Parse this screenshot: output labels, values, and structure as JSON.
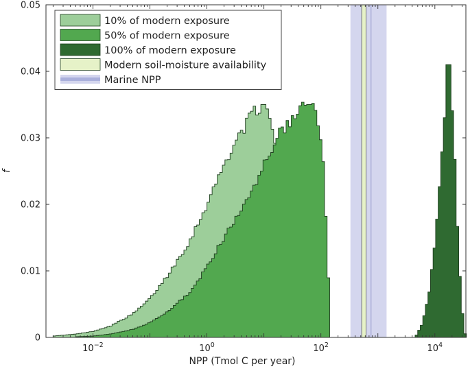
{
  "chart_data": {
    "type": "histogram",
    "x_scale": "log10",
    "xlim": [
      0.0015,
      35000
    ],
    "ylim": [
      0,
      0.05
    ],
    "xlabel": "NPP (Tmol C per year)",
    "ylabel": "f",
    "x_ticks": [
      {
        "value": 0.01,
        "base": "10",
        "exp": "−2"
      },
      {
        "value": 1,
        "base": "10",
        "exp": "0"
      },
      {
        "value": 100,
        "base": "10",
        "exp": "2"
      },
      {
        "value": 10000,
        "base": "10",
        "exp": "4"
      }
    ],
    "y_ticks": [
      {
        "value": 0,
        "label": "0"
      },
      {
        "value": 0.01,
        "label": "0.01"
      },
      {
        "value": 0.02,
        "label": "0.02"
      },
      {
        "value": 0.03,
        "label": "0.03"
      },
      {
        "value": 0.04,
        "label": "0.04"
      },
      {
        "value": 0.05,
        "label": "0.05"
      }
    ],
    "legend_position": "top-left",
    "series": [
      {
        "name": "10% of modern exposure",
        "color": "#9dce9a",
        "peak_x": 9.5,
        "peak_y": 0.035,
        "profile": [
          [
            0.002,
            0.0002
          ],
          [
            0.005,
            0.0005
          ],
          [
            0.01,
            0.0009
          ],
          [
            0.02,
            0.0017
          ],
          [
            0.05,
            0.0035
          ],
          [
            0.1,
            0.0058
          ],
          [
            0.2,
            0.0092
          ],
          [
            0.5,
            0.0145
          ],
          [
            1,
            0.02
          ],
          [
            2,
            0.026
          ],
          [
            4,
            0.031
          ],
          [
            7,
            0.034
          ],
          [
            9.5,
            0.035
          ],
          [
            11,
            0.0345
          ],
          [
            15,
            0.03
          ],
          [
            19,
            0.025
          ],
          [
            21,
            0.02
          ],
          [
            24,
            0.012
          ],
          [
            27,
            0.005
          ],
          [
            30,
            0.0015
          ],
          [
            32,
            0
          ]
        ]
      },
      {
        "name": "50% of modern exposure",
        "color": "#52a84f",
        "peak_x": 65,
        "peak_y": 0.035,
        "profile": [
          [
            0.005,
            0.0001
          ],
          [
            0.01,
            0.0002
          ],
          [
            0.02,
            0.0005
          ],
          [
            0.05,
            0.0012
          ],
          [
            0.1,
            0.0022
          ],
          [
            0.2,
            0.0038
          ],
          [
            0.5,
            0.0068
          ],
          [
            1,
            0.0105
          ],
          [
            2,
            0.015
          ],
          [
            5,
            0.0205
          ],
          [
            10,
            0.026
          ],
          [
            20,
            0.031
          ],
          [
            40,
            0.034
          ],
          [
            65,
            0.035
          ],
          [
            80,
            0.034
          ],
          [
            95,
            0.031
          ],
          [
            110,
            0.026
          ],
          [
            120,
            0.02
          ],
          [
            130,
            0.012
          ],
          [
            140,
            0.006
          ],
          [
            150,
            0
          ]
        ]
      },
      {
        "name": "100% of modern exposure",
        "color": "#2f6a31",
        "peak_x": 17000,
        "peak_y": 0.041,
        "profile": [
          [
            4500,
            0
          ],
          [
            6000,
            0.002
          ],
          [
            8000,
            0.007
          ],
          [
            10000,
            0.014
          ],
          [
            12000,
            0.022
          ],
          [
            14000,
            0.031
          ],
          [
            16000,
            0.038
          ],
          [
            17500,
            0.041
          ],
          [
            19000,
            0.039
          ],
          [
            21000,
            0.032
          ],
          [
            23000,
            0.024
          ],
          [
            25500,
            0.015
          ],
          [
            28000,
            0.008
          ],
          [
            31000,
            0.003
          ],
          [
            34000,
            0.0005
          ],
          [
            36000,
            0
          ]
        ]
      },
      {
        "name": "Modern soil-moisture availability",
        "color": "#e6f2c8",
        "band_x": [
          520,
          620
        ]
      },
      {
        "name": "Marine NPP",
        "color": "#d4d6ee",
        "legend_color": "#aab0dc",
        "band_x": [
          330,
          1420
        ],
        "center_line_x": 760
      }
    ]
  }
}
